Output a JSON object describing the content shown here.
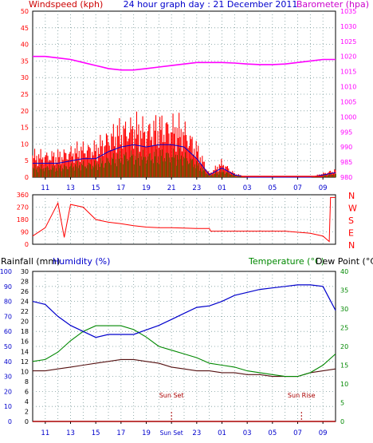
{
  "header": {
    "title": "24 hour graph day : 21 December 2011",
    "left_label": "Windspeed (kph)",
    "right_label": "Barometer (hpa)"
  },
  "colors": {
    "wind": "#ff0000",
    "gust_blue": "#0000cc",
    "gust_green": "#008800",
    "barometer": "#ff00ff",
    "direction": "#ff0000",
    "humidity": "#0000cc",
    "temperature": "#008800",
    "dewpoint": "#551111",
    "rain": "#aa0000",
    "grid": "#7a9a9a",
    "frame": "#000000",
    "title_blue": "#0000cc",
    "mid_green": "#008800",
    "sun": "#aa0000"
  },
  "x_ticks": [
    "11",
    "13",
    "15",
    "17",
    "19",
    "21",
    "23",
    "01",
    "03",
    "05",
    "07",
    "09"
  ],
  "bottom_x_ticks": [
    "11",
    "13",
    "15",
    "17",
    "19",
    "Sun Set",
    "23",
    "01",
    "03",
    "05",
    "07",
    "09"
  ],
  "chart_data": [
    {
      "type": "line",
      "name": "wind-barometer",
      "x_ticks": [
        "11",
        "13",
        "15",
        "17",
        "19",
        "21",
        "23",
        "01",
        "03",
        "05",
        "07",
        "09"
      ],
      "left_axis": {
        "label": "Windspeed (kph)",
        "range": [
          0,
          50
        ],
        "ticks": [
          0,
          5,
          10,
          15,
          20,
          25,
          30,
          35,
          40,
          45,
          50
        ]
      },
      "right_axis": {
        "label": "Barometer (hpa)",
        "range": [
          980,
          1035
        ],
        "ticks": [
          980,
          985,
          990,
          995,
          1000,
          1005,
          1010,
          1015,
          1020,
          1025,
          1030,
          1035
        ]
      },
      "series": [
        {
          "name": "Windspeed (kph)",
          "axis": "left",
          "x": [
            10,
            11,
            12,
            13,
            14,
            15,
            16,
            17,
            18,
            19,
            20,
            21,
            22,
            23,
            24,
            25,
            26,
            27,
            28,
            29,
            30,
            31,
            32,
            33,
            34
          ],
          "values": [
            6,
            6,
            6,
            7,
            8,
            8,
            11,
            13,
            14,
            13,
            14,
            14,
            13,
            8,
            1,
            4,
            1,
            0,
            0,
            0,
            0,
            0,
            0,
            1,
            2
          ]
        },
        {
          "name": "Barometer (hpa)",
          "axis": "right",
          "x": [
            10,
            11,
            12,
            13,
            14,
            15,
            16,
            17,
            18,
            19,
            20,
            21,
            22,
            23,
            24,
            25,
            26,
            27,
            28,
            29,
            30,
            31,
            32,
            33,
            34
          ],
          "values": [
            1020,
            1020,
            1019.5,
            1019,
            1018,
            1017,
            1016,
            1015.5,
            1015.5,
            1016,
            1016.5,
            1017,
            1017.5,
            1018,
            1018,
            1018,
            1017.8,
            1017.5,
            1017.3,
            1017.3,
            1017.5,
            1018,
            1018.5,
            1019,
            1019
          ]
        }
      ]
    },
    {
      "type": "line",
      "name": "wind-direction",
      "x_ticks": [
        "11",
        "13",
        "15",
        "17",
        "19",
        "21",
        "23",
        "01",
        "03",
        "05",
        "07",
        "09"
      ],
      "left_axis": {
        "range": [
          0,
          360
        ],
        "ticks": [
          0,
          90,
          180,
          270,
          360
        ]
      },
      "right_axis": {
        "labels": [
          "N",
          "W",
          "S",
          "E",
          "N"
        ]
      },
      "series": [
        {
          "name": "Wind direction",
          "x": [
            10,
            11,
            12,
            12.5,
            13,
            14,
            15,
            16,
            17,
            18,
            19,
            20,
            21,
            22,
            23,
            24,
            24.1,
            26,
            28,
            30,
            32,
            33,
            33.5,
            33.6,
            34
          ],
          "values": [
            60,
            120,
            300,
            50,
            290,
            270,
            180,
            160,
            150,
            135,
            125,
            120,
            120,
            118,
            115,
            115,
            95,
            95,
            95,
            95,
            80,
            60,
            20,
            340,
            340
          ]
        }
      ]
    },
    {
      "type": "line",
      "name": "humidity-temperature",
      "x_ticks": [
        "11",
        "13",
        "15",
        "17",
        "19",
        "Sun Set",
        "23",
        "01",
        "03",
        "05",
        "07",
        "09"
      ],
      "annotations": [
        "Sun Set",
        "Sun Rise"
      ],
      "axes": {
        "humidity": {
          "label": "Humidity (%)",
          "range": [
            0,
            100
          ],
          "ticks": [
            0,
            10,
            20,
            30,
            40,
            50,
            60,
            70,
            80,
            90,
            100
          ]
        },
        "rainfall": {
          "label": "Rainfall (mm)",
          "range": [
            0,
            30
          ],
          "ticks": [
            0,
            2,
            4,
            6,
            8,
            10,
            12,
            14,
            16,
            18,
            20,
            22,
            24,
            26,
            28,
            30
          ]
        },
        "temperature": {
          "label": "Temperature (°C)",
          "range": [
            0,
            40
          ],
          "ticks": [
            0,
            5,
            10,
            15,
            20,
            25,
            30,
            35,
            40
          ]
        },
        "dewpoint": {
          "label": "Dew Point (°C)"
        }
      },
      "series": [
        {
          "name": "Humidity (%)",
          "axis": "humidity",
          "x": [
            10,
            11,
            12,
            13,
            14,
            15,
            16,
            17,
            18,
            19,
            20,
            21,
            22,
            23,
            24,
            25,
            26,
            27,
            28,
            29,
            30,
            31,
            32,
            33,
            33.5,
            34
          ],
          "values": [
            80,
            78,
            70,
            64,
            60,
            56,
            58,
            58,
            58,
            61,
            64,
            68,
            72,
            76,
            77,
            80,
            84,
            86,
            88,
            89,
            90,
            91,
            91,
            90,
            82,
            74
          ]
        },
        {
          "name": "Temperature (°C)",
          "axis": "temperature",
          "x": [
            10,
            11,
            12,
            13,
            14,
            15,
            16,
            17,
            18,
            19,
            20,
            21,
            22,
            23,
            24,
            25,
            26,
            27,
            28,
            29,
            30,
            31,
            32,
            33,
            34
          ],
          "values": [
            16,
            16.5,
            18.5,
            21.5,
            24,
            25.5,
            25.5,
            25.5,
            24.5,
            22.5,
            20,
            19,
            18,
            17,
            15.5,
            15,
            14.5,
            13.5,
            13,
            12.5,
            12,
            12,
            13,
            15,
            18
          ]
        },
        {
          "name": "Dew Point (°C)",
          "axis": "temperature",
          "x": [
            10,
            11,
            12,
            13,
            14,
            15,
            16,
            17,
            18,
            19,
            20,
            21,
            22,
            23,
            24,
            25,
            26,
            27,
            28,
            29,
            30,
            31,
            32,
            33,
            34
          ],
          "values": [
            13.5,
            13.5,
            14,
            14.5,
            15,
            15.5,
            16,
            16.5,
            16.5,
            16,
            15.5,
            14.5,
            14,
            13.5,
            13.5,
            13,
            13,
            12.5,
            12.5,
            12,
            12,
            12,
            13,
            13.5,
            14
          ]
        },
        {
          "name": "Rainfall (mm)",
          "axis": "rainfall",
          "x": [
            10,
            34
          ],
          "values": [
            0,
            0
          ]
        }
      ]
    }
  ]
}
